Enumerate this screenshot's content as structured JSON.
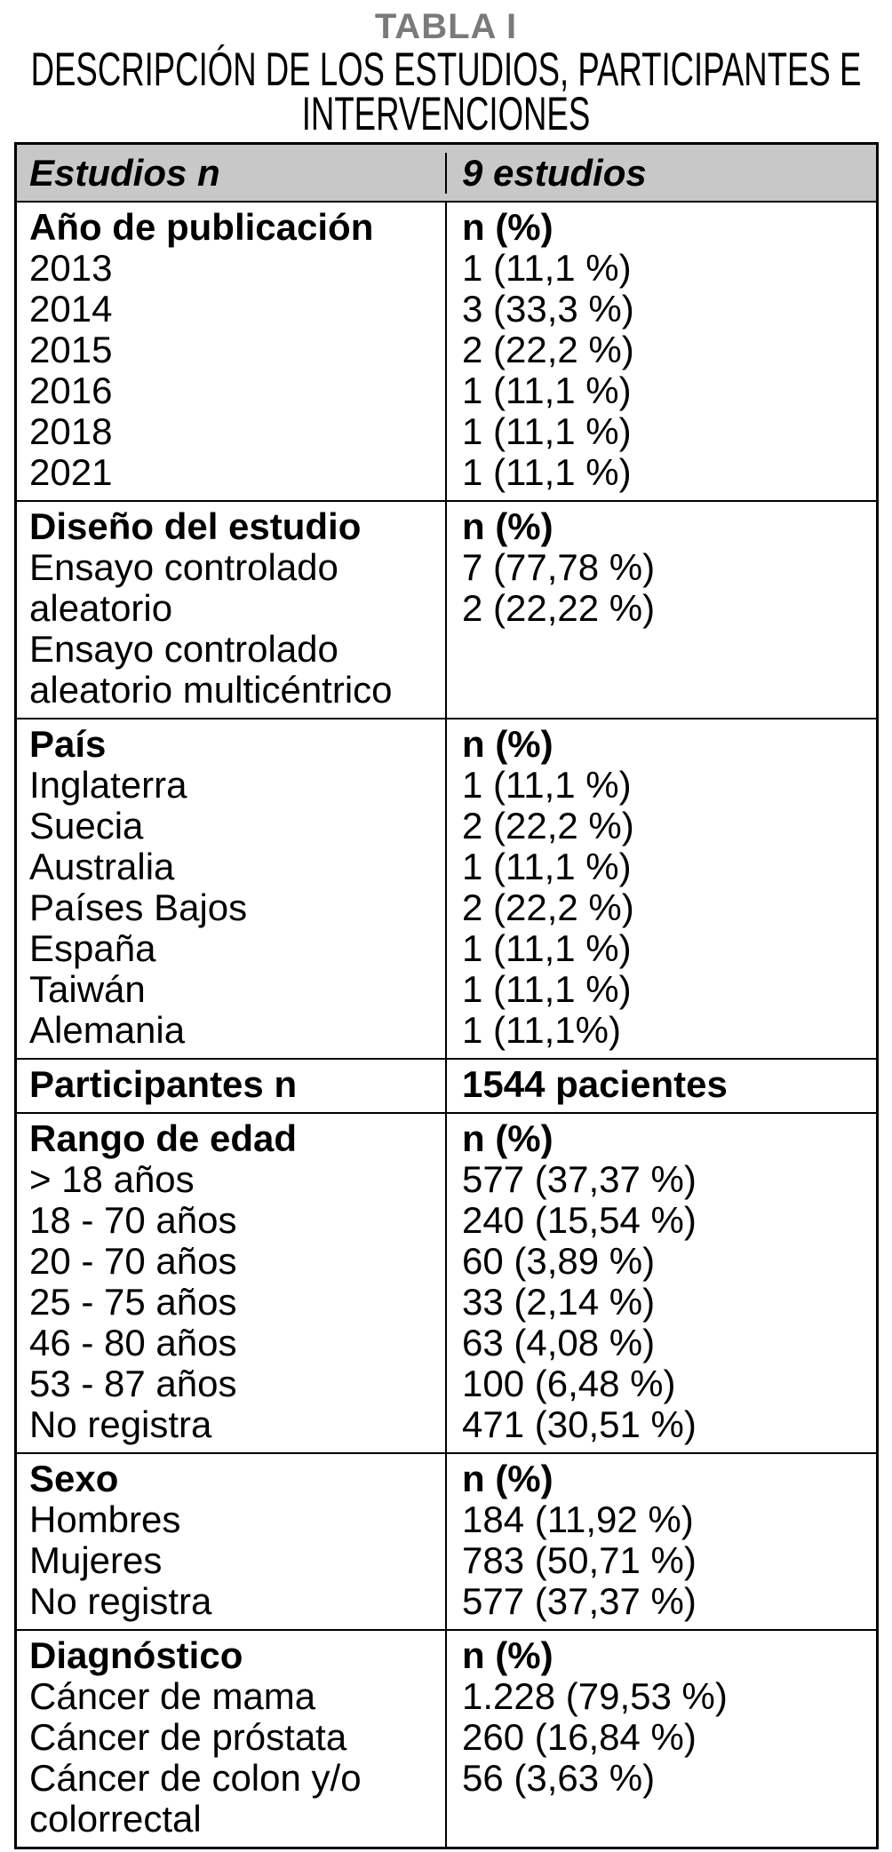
{
  "page": {
    "title": "TABLA I",
    "subtitle": "DESCRIPCIÓN DE LOS ESTUDIOS, PARTICIPANTES E INTERVENCIONES"
  },
  "colors": {
    "title_gray": "#7a7a7a",
    "header_row_bg": "#c8c8c8",
    "border": "#000000"
  },
  "table": {
    "header": {
      "left": "Estudios n",
      "right": "9 estudios"
    },
    "sections": [
      {
        "name": "ano-de-publicacion",
        "left": [
          "Año de publicación",
          "2013",
          "2014",
          "2015",
          "2016",
          "2018",
          "2021"
        ],
        "right": [
          "n (%)",
          "1 (11,1 %)",
          "3 (33,3 %)",
          "2 (22,2 %)",
          "1 (11,1 %)",
          "1 (11,1 %)",
          "1 (11,1 %)"
        ]
      },
      {
        "name": "diseno-del-estudio",
        "left": [
          "Diseño del estudio",
          "Ensayo controlado",
          "aleatorio",
          "Ensayo controlado",
          "aleatorio multicéntrico"
        ],
        "right": [
          "n (%)",
          "7 (77,78 %)",
          "2 (22,22 %)"
        ]
      },
      {
        "name": "pais",
        "left": [
          "País",
          "Inglaterra",
          "Suecia",
          "Australia",
          "Países Bajos",
          "España",
          "Taiwán",
          "Alemania"
        ],
        "right": [
          "n (%)",
          "1 (11,1 %)",
          "2 (22,2 %)",
          "1 (11,1 %)",
          "2 (22,2 %)",
          "1 (11,1 %)",
          "1 (11,1 %)",
          "1 (11,1%)"
        ]
      },
      {
        "name": "participantes",
        "left": [
          "Participantes n"
        ],
        "right": [
          "1544 pacientes"
        ]
      },
      {
        "name": "rango-de-edad",
        "left": [
          "Rango de edad",
          "> 18 años",
          "18 - 70 años",
          "20 - 70 años",
          "25 - 75 años",
          "46 - 80 años",
          "53 - 87 años",
          "No registra"
        ],
        "right": [
          "n (%)",
          "577 (37,37 %)",
          "240 (15,54 %)",
          "60 (3,89 %)",
          "33 (2,14 %)",
          "63 (4,08 %)",
          "100 (6,48 %)",
          "471 (30,51 %)"
        ]
      },
      {
        "name": "sexo",
        "left": [
          "Sexo",
          "Hombres",
          "Mujeres",
          "No registra"
        ],
        "right": [
          "n (%)",
          "184 (11,92 %)",
          "783 (50,71 %)",
          "577 (37,37 %)"
        ]
      },
      {
        "name": "diagnostico",
        "left": [
          "Diagnóstico",
          "Cáncer de mama",
          "Cáncer de próstata",
          "Cáncer de colon y/o",
          "colorrectal"
        ],
        "right": [
          "n (%)",
          "1.228 (79,53 %)",
          "260 (16,84 %)",
          "56 (3,63 %)"
        ]
      }
    ]
  }
}
